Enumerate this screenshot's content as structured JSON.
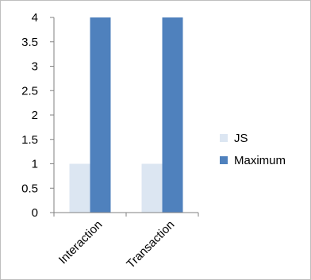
{
  "chart_data": {
    "type": "bar",
    "categories": [
      "Interaction",
      "Transaction"
    ],
    "series": [
      {
        "name": "JS",
        "values": [
          1,
          1
        ],
        "color": "#dce6f2"
      },
      {
        "name": "Maximum",
        "values": [
          4,
          4
        ],
        "color": "#4f81bd"
      }
    ],
    "ylim": [
      0,
      4
    ],
    "yticks": [
      "0",
      "0.5",
      "1",
      "1.5",
      "2",
      "2.5",
      "3",
      "3.5",
      "4"
    ],
    "title": "",
    "xlabel": "",
    "ylabel": "",
    "grid": false,
    "legend_position": "right"
  }
}
